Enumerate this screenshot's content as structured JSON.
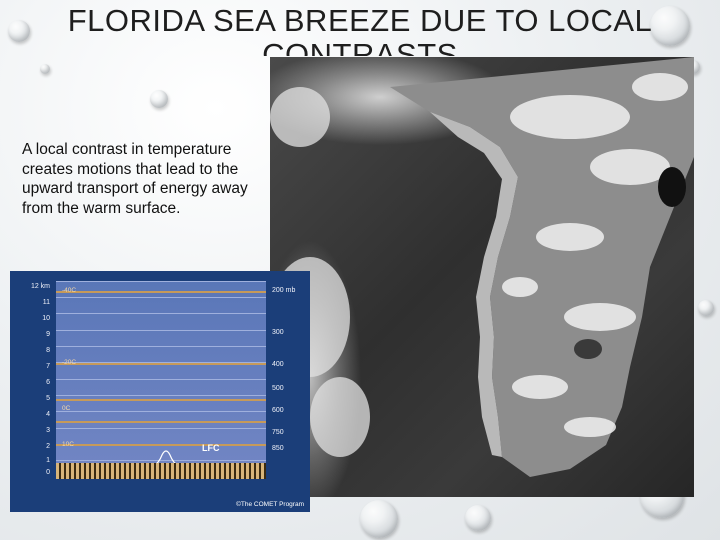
{
  "slide": {
    "title": "FLORIDA SEA BREEZE DUE TO LOCAL CONTRASTS",
    "body": "A local contrast in temperature creates motions that lead to the upward transport of energy away from the warm surface."
  },
  "diagram": {
    "height_labels": [
      "12 km",
      "11",
      "10",
      "9",
      "8",
      "7",
      "6",
      "5",
      "4",
      "3",
      "2",
      "1",
      "0"
    ],
    "pressure_labels": [
      "200 mb",
      "300",
      "400",
      "500",
      "600",
      "750",
      "850"
    ],
    "temperature_labels": [
      "-40C",
      "-20C",
      "0C",
      "10C"
    ],
    "lfc_label": "LFC",
    "credit": "©The COMET Program"
  }
}
